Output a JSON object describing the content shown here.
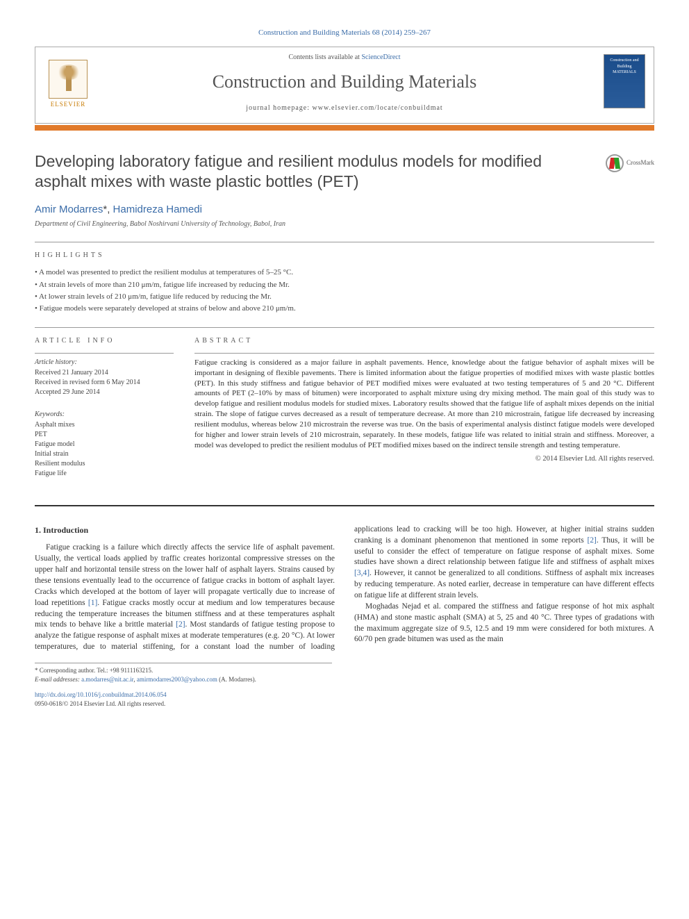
{
  "citation": "Construction and Building Materials 68 (2014) 259–267",
  "header": {
    "contents_prefix": "Contents lists available at ",
    "contents_link": "ScienceDirect",
    "journal_name": "Construction and Building Materials",
    "homepage_prefix": "journal homepage: ",
    "homepage_url": "www.elsevier.com/locate/conbuildmat",
    "elsevier": "ELSEVIER",
    "cover_text": "Construction and Building MATERIALS"
  },
  "crossmark": "CrossMark",
  "title": "Developing laboratory fatigue and resilient modulus models for modified asphalt mixes with waste plastic bottles (PET)",
  "authors": {
    "a1_name": "Amir Modarres",
    "a1_mark": "*",
    "sep": ", ",
    "a2_name": "Hamidreza Hamedi"
  },
  "affiliation": "Department of Civil Engineering, Babol Noshirvani University of Technology, Babol, Iran",
  "highlights": {
    "label": "highlights",
    "items": [
      "A model was presented to predict the resilient modulus at temperatures of 5–25 °C.",
      "At strain levels of more than 210 μm/m, fatigue life increased by reducing the Mr.",
      "At lower strain levels of 210 μm/m, fatigue life reduced by reducing the Mr.",
      "Fatigue models were separately developed at strains of below and above 210 μm/m."
    ]
  },
  "info": {
    "label": "article info",
    "history_heading": "Article history:",
    "received": "Received 21 January 2014",
    "revised": "Received in revised form 6 May 2014",
    "accepted": "Accepted 29 June 2014",
    "keywords_heading": "Keywords:",
    "keywords": [
      "Asphalt mixes",
      "PET",
      "Fatigue model",
      "Initial strain",
      "Resilient modulus",
      "Fatigue life"
    ]
  },
  "abstract": {
    "label": "abstract",
    "text": "Fatigue cracking is considered as a major failure in asphalt pavements. Hence, knowledge about the fatigue behavior of asphalt mixes will be important in designing of flexible pavements. There is limited information about the fatigue properties of modified mixes with waste plastic bottles (PET). In this study stiffness and fatigue behavior of PET modified mixes were evaluated at two testing temperatures of 5 and 20 °C. Different amounts of PET (2–10% by mass of bitumen) were incorporated to asphalt mixture using dry mixing method. The main goal of this study was to develop fatigue and resilient modulus models for studied mixes. Laboratory results showed that the fatigue life of asphalt mixes depends on the initial strain. The slope of fatigue curves decreased as a result of temperature decrease. At more than 210 microstrain, fatigue life decreased by increasing resilient modulus, whereas below 210 microstrain the reverse was true. On the basis of experimental analysis distinct fatigue models were developed for higher and lower strain levels of 210 microstrain, separately. In these models, fatigue life was related to initial strain and stiffness. Moreover, a model was developed to predict the resilient modulus of PET modified mixes based on the indirect tensile strength and testing temperature.",
    "copyright": "© 2014 Elsevier Ltd. All rights reserved."
  },
  "body": {
    "heading": "1. Introduction",
    "para1a": "Fatigue cracking is a failure which directly affects the service life of asphalt pavement. Usually, the vertical loads applied by traffic creates horizontal compressive stresses on the upper half and horizontal tensile stress on the lower half of asphalt layers. Strains caused by these tensions eventually lead to the occurrence of fatigue cracks in bottom of asphalt layer. Cracks which developed at the bottom of layer will propagate vertically due to increase of load repetitions ",
    "ref1": "[1]",
    "para1b": ". Fatigue cracks mostly occur at medium and low temperatures because reducing the temperature increases the bitumen stiffness and at these temperatures asphalt mix tends to behave like a brittle material ",
    "ref2": "[2]",
    "para1c": ". Most standards of fatigue testing propose to analyze the fatigue response of asphalt mixes at moderate temperatures (e.g. 20 °C). At lower temperatures, due to material stiffening, for a constant load the number of loading applications lead to cracking will be too high. However, at higher initial strains sudden cranking is a dominant phenomenon that mentioned in some reports ",
    "ref2b": "[2]",
    "para1d": ". Thus, it will be useful to consider the effect of temperature on fatigue response of asphalt mixes. Some studies have shown a direct relationship between fatigue life and stiffness of asphalt mixes ",
    "ref34": "[3,4]",
    "para1e": ". However, it cannot be generalized to all conditions. Stiffness of asphalt mix increases by reducing temperature. As noted earlier, decrease in temperature can have different effects on fatigue life at different strain levels.",
    "para2": "Moghadas Nejad et al. compared the stiffness and fatigue response of hot mix asphalt (HMA) and stone mastic asphalt (SMA) at 5, 25 and 40 °C. Three types of gradations with the maximum aggregate size of 9.5, 12.5 and 19 mm were considered for both mixtures. A 60/70 pen grade bitumen was used as the main"
  },
  "footnotes": {
    "corr": "* Corresponding author. Tel.: +98 9111163215.",
    "email_label": "E-mail addresses:",
    "email1": "a.modarres@nit.ac.ir",
    "email_sep": ", ",
    "email2": "amirmodarres2003@yahoo.com",
    "email_who": "(A. Modarres)."
  },
  "bottom": {
    "doi": "http://dx.doi.org/10.1016/j.conbuildmat.2014.06.054",
    "issn_copy": "0950-0618/© 2014 Elsevier Ltd. All rights reserved."
  }
}
